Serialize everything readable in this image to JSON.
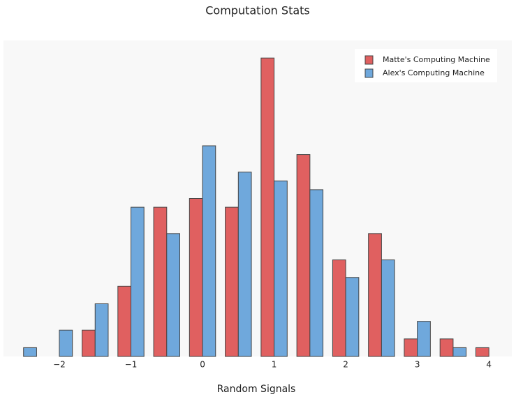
{
  "chart_data": {
    "type": "histogram",
    "title": "Computation Stats",
    "x_label": "Random Signals",
    "bins": [
      -2.75,
      -2.25,
      -1.75,
      -1.25,
      -0.75,
      -0.25,
      0.25,
      0.75,
      1.25,
      1.75,
      2.25,
      2.75,
      3.25,
      3.75,
      4.25
    ],
    "series": [
      {
        "name": "Matte's Computing Machine",
        "color": "#e06060",
        "values": [
          0,
          0,
          3,
          8,
          17,
          18,
          17,
          34,
          23,
          11,
          14,
          2,
          2,
          1
        ]
      },
      {
        "name": "Alex's Computing Machine",
        "color": "#6fa8dc",
        "values": [
          1,
          3,
          6,
          17,
          14,
          24,
          21,
          20,
          19,
          9,
          11,
          4,
          1,
          0
        ]
      }
    ],
    "xlim": [
      -2.78,
      4.32
    ],
    "ylim": [
      0,
      36
    ],
    "xticks": [
      {
        "value": -2,
        "label": "−2"
      },
      {
        "value": -1,
        "label": "−1"
      },
      0,
      1,
      2,
      3,
      4
    ],
    "legend": "top-right"
  }
}
